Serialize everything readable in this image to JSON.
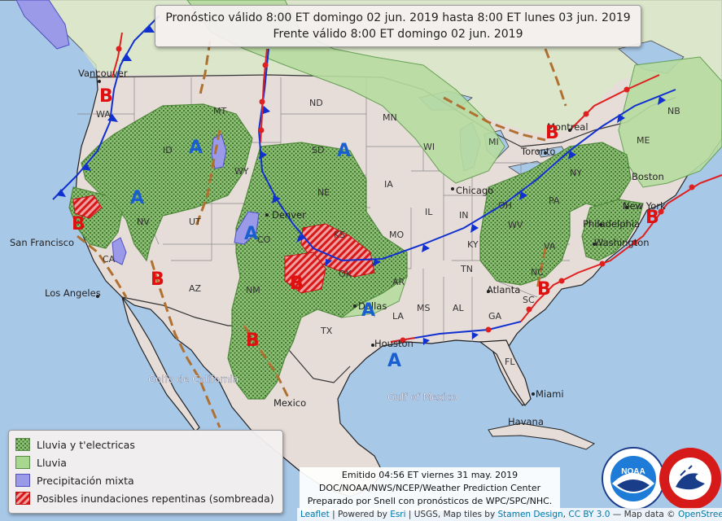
{
  "header": {
    "line1": "Pronóstico válido 8:00 ET domingo 02 jun. 2019 hasta 8:00 ET lunes 03 jun. 2019",
    "line2": "Frente válido 8:00 ET domingo 02 jun. 2019"
  },
  "legend": {
    "items": [
      {
        "label": "Lluvia y t'electricas",
        "color": "#4e8a3a"
      },
      {
        "label": "Lluvia",
        "color": "#a8d890"
      },
      {
        "label": "Precipitación mixta",
        "color": "#9a9ae8"
      },
      {
        "label": "Posibles inundaciones repentinas (sombreada)",
        "color": "#e02020"
      }
    ]
  },
  "issued": {
    "line1": "Emitido 04:56 ET viernes 31 may. 2019",
    "line2": "DOC/NOAA/NWS/NCEP/Weather Prediction Center",
    "line3": "Preparado por Snell con pronósticos de WPC/SPC/NHC."
  },
  "attribution": {
    "leaflet": "Leaflet",
    "powered": " | Powered by ",
    "esri": "Esri",
    "usgs": " | USGS, Map tiles by ",
    "stamen": "Stamen Design",
    "comma": ", ",
    "ccby": "CC BY 3.0",
    "mapdata": " — Map data © ",
    "osm": "OpenStreetMap"
  },
  "map_labels": {
    "cities": [
      "Vancouver",
      "San Francisco",
      "Los Angeles",
      "Denver",
      "Dallas",
      "Houston",
      "Chicago",
      "Toronto",
      "Montreal",
      "New York",
      "Philadelphia",
      "Washington",
      "Atlanta",
      "Miami",
      "Havana",
      "Mexico",
      "Boston"
    ],
    "states": [
      "WA",
      "MT",
      "ND",
      "MN",
      "WI",
      "MI",
      "ID",
      "WY",
      "SD",
      "NE",
      "IA",
      "IL",
      "IN",
      "OH",
      "PA",
      "NY",
      "NV",
      "UT",
      "CO",
      "KS",
      "MO",
      "KY",
      "WV",
      "VA",
      "CA",
      "AZ",
      "NM",
      "OK",
      "AR",
      "TN",
      "NC",
      "TX",
      "LA",
      "MS",
      "AL",
      "GA",
      "SC",
      "FL",
      "NB",
      "ME"
    ],
    "waters": [
      "Golfo de California",
      "Gulf of Mexico"
    ],
    "highs": [
      "A",
      "A",
      "A",
      "A",
      "A",
      "A"
    ],
    "lows": [
      "B",
      "B",
      "B",
      "B",
      "B",
      "B",
      "B",
      "B"
    ]
  },
  "colors": {
    "ocean": "#a8c8e8",
    "land": "#e6dcd8",
    "canada": "#d8e8c8",
    "rain_thunder": "#4e8a3a",
    "rain": "#a8d890",
    "mixed": "#9a9ae8",
    "flood": "#e02020",
    "warm_front": "#e02020",
    "cold_front": "#1030d0",
    "trough": "#b07030"
  }
}
